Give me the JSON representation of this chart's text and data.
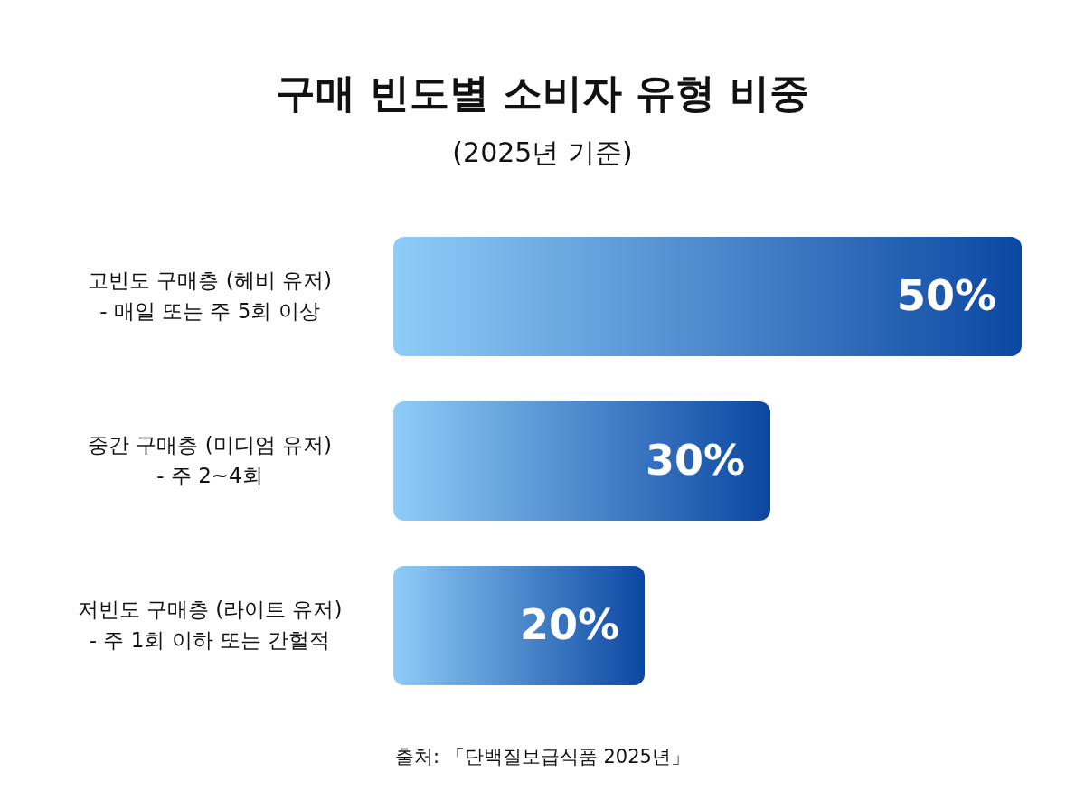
{
  "chart_data": {
    "type": "bar",
    "orientation": "horizontal",
    "title": "구매 빈도별 소비자 유형 비중",
    "subtitle": "(2025년 기준)",
    "categories": [
      "고빈도 구매층 (헤비 유저)\n- 매일 또는 주 5회 이상",
      "중간 구매층 (미디엄 유저)\n- 주 2~4회",
      "저빈도 구매층 (라이트 유저)\n- 주 1회 이하 또는 간헐적"
    ],
    "values": [
      50,
      30,
      20
    ],
    "value_labels": [
      "50%",
      "30%",
      "20%"
    ],
    "color": "#0b47a1",
    "annotations": [
      "출처: 「단백질보급식품 2025년」"
    ]
  }
}
